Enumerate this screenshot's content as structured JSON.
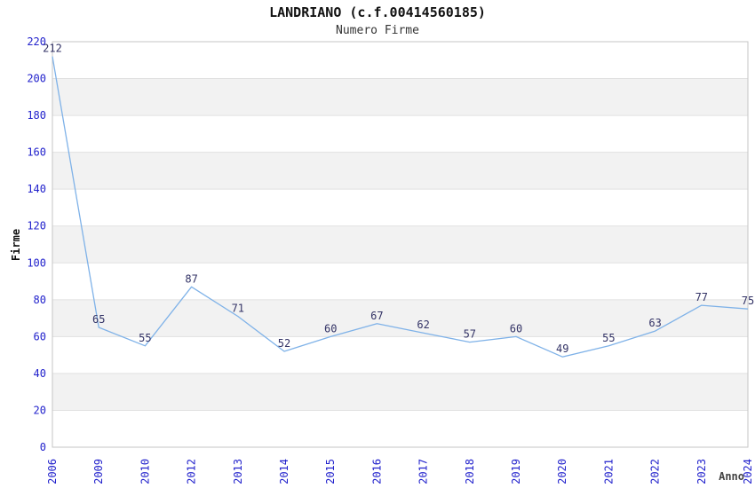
{
  "chart_data": {
    "type": "line",
    "title": "LANDRIANO (c.f.00414560185)",
    "subtitle": "Numero Firme",
    "xlabel": "Anno",
    "ylabel": "Firme",
    "categories": [
      "2006",
      "2009",
      "2010",
      "2012",
      "2013",
      "2014",
      "2015",
      "2016",
      "2017",
      "2018",
      "2019",
      "2020",
      "2021",
      "2022",
      "2023",
      "2024"
    ],
    "values": [
      212,
      65,
      55,
      87,
      71,
      52,
      60,
      67,
      62,
      57,
      60,
      49,
      55,
      63,
      77,
      75
    ],
    "ylim": [
      0,
      220
    ],
    "ytick_step": 20,
    "yticks": [
      0,
      20,
      40,
      60,
      80,
      100,
      120,
      140,
      160,
      180,
      200,
      220
    ],
    "grid": true,
    "legend": "none",
    "show_value_labels": true,
    "colors": {
      "line": "#7fb2e8",
      "value_label": "#333366",
      "tick_label": "#2222cc",
      "band_even": "#ffffff",
      "band_odd": "#f2f2f2",
      "gridline": "#e0e0e0",
      "plot_border": "#c6c6c6",
      "background": "#ffffff"
    }
  }
}
